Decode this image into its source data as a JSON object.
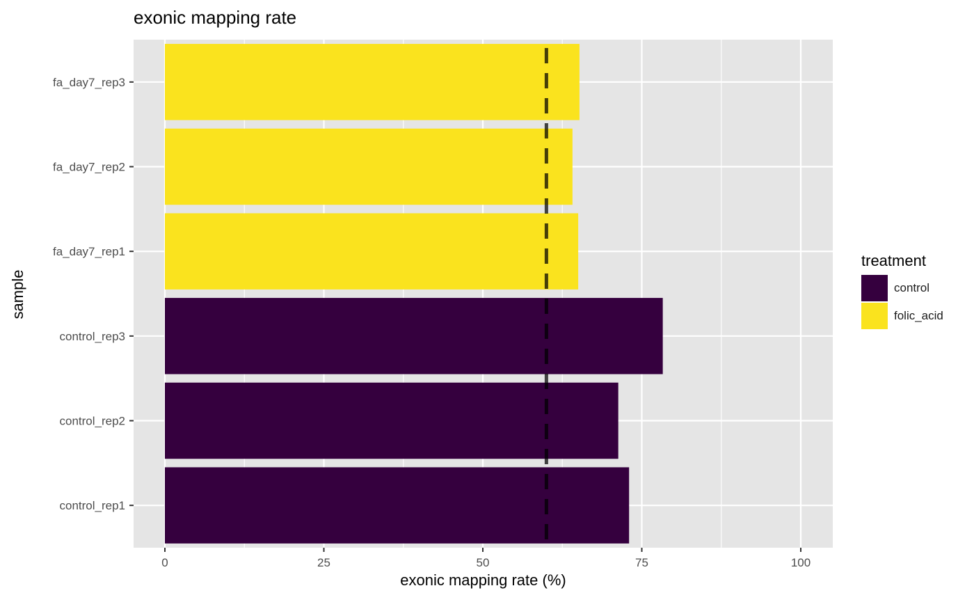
{
  "chart_data": {
    "type": "bar",
    "orientation": "horizontal",
    "title": "exonic mapping rate",
    "xlabel": "exonic mapping rate (%)",
    "ylabel": "sample",
    "xlim": [
      0,
      105
    ],
    "xticks": [
      0,
      25,
      50,
      75,
      100
    ],
    "xtick_labels": [
      "0",
      "25",
      "50",
      "75",
      "100"
    ],
    "categories": [
      "control_rep1",
      "control_rep2",
      "control_rep3",
      "fa_day7_rep1",
      "fa_day7_rep2",
      "fa_day7_rep3"
    ],
    "values": [
      73.0,
      71.3,
      78.3,
      65.0,
      64.1,
      65.2
    ],
    "groups": [
      "control",
      "control",
      "control",
      "folic_acid",
      "folic_acid",
      "folic_acid"
    ],
    "reference_line": {
      "x": 60,
      "style": "dashed",
      "color": "#000000"
    },
    "legend": {
      "title": "treatment",
      "placement": "right",
      "entries": [
        {
          "label": "control",
          "color": "#35003e"
        },
        {
          "label": "folic_acid",
          "color": "#fae31e"
        }
      ]
    },
    "grid": true,
    "panel_background": "#e5e5e5"
  }
}
